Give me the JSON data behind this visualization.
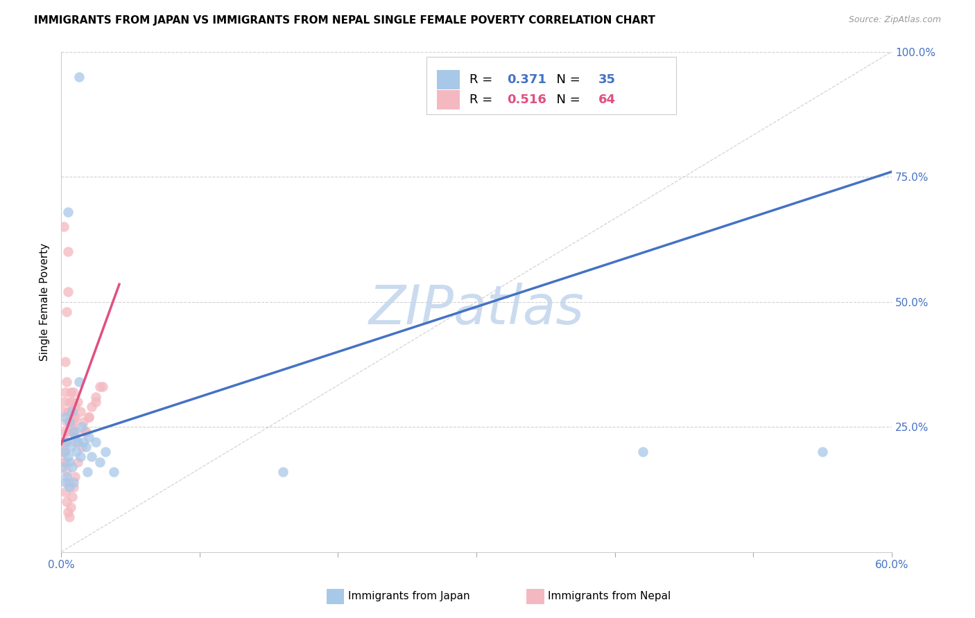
{
  "title": "IMMIGRANTS FROM JAPAN VS IMMIGRANTS FROM NEPAL SINGLE FEMALE POVERTY CORRELATION CHART",
  "source": "Source: ZipAtlas.com",
  "ylabel": "Single Female Poverty",
  "xlim": [
    0.0,
    0.6
  ],
  "ylim": [
    0.0,
    1.0
  ],
  "japan_color": "#a8c8e8",
  "nepal_color": "#f4b8c0",
  "japan_R": 0.371,
  "japan_N": 35,
  "nepal_R": 0.516,
  "nepal_N": 64,
  "background_color": "#ffffff",
  "grid_color": "#d0d0d0",
  "japan_line_color": "#4472c4",
  "nepal_line_color": "#e05080",
  "ref_line_color": "#c8c8c8",
  "watermark": "ZIPatlas",
  "watermark_color": "#c5d8ee",
  "japan_line_x": [
    0.0,
    0.6
  ],
  "japan_line_y": [
    0.22,
    0.76
  ],
  "nepal_line_x": [
    0.0,
    0.042
  ],
  "nepal_line_y": [
    0.215,
    0.535
  ],
  "japan_scatter_x": [
    0.005,
    0.013,
    0.003,
    0.006,
    0.008,
    0.004,
    0.007,
    0.009,
    0.002,
    0.005,
    0.01,
    0.012,
    0.015,
    0.018,
    0.02,
    0.006,
    0.008,
    0.011,
    0.014,
    0.016,
    0.019,
    0.022,
    0.025,
    0.028,
    0.032,
    0.038,
    0.16,
    0.42,
    0.55,
    0.003,
    0.004,
    0.006,
    0.009,
    0.013,
    0.001
  ],
  "japan_scatter_y": [
    0.68,
    0.95,
    0.27,
    0.26,
    0.28,
    0.22,
    0.21,
    0.24,
    0.2,
    0.19,
    0.23,
    0.22,
    0.25,
    0.21,
    0.23,
    0.18,
    0.17,
    0.2,
    0.19,
    0.22,
    0.16,
    0.19,
    0.22,
    0.18,
    0.2,
    0.16,
    0.16,
    0.2,
    0.2,
    0.14,
    0.15,
    0.13,
    0.14,
    0.34,
    0.17
  ],
  "nepal_scatter_x": [
    0.001,
    0.002,
    0.003,
    0.004,
    0.005,
    0.006,
    0.007,
    0.008,
    0.009,
    0.01,
    0.002,
    0.003,
    0.004,
    0.005,
    0.006,
    0.007,
    0.008,
    0.009,
    0.01,
    0.011,
    0.001,
    0.002,
    0.003,
    0.004,
    0.005,
    0.006,
    0.007,
    0.008,
    0.009,
    0.002,
    0.003,
    0.004,
    0.005,
    0.006,
    0.007,
    0.008,
    0.01,
    0.012,
    0.014,
    0.016,
    0.018,
    0.02,
    0.022,
    0.025,
    0.028,
    0.001,
    0.002,
    0.003,
    0.004,
    0.005,
    0.003,
    0.004,
    0.005,
    0.006,
    0.007,
    0.008,
    0.009,
    0.01,
    0.012,
    0.015,
    0.017,
    0.02,
    0.025,
    0.03
  ],
  "nepal_scatter_y": [
    0.28,
    0.3,
    0.32,
    0.34,
    0.6,
    0.26,
    0.28,
    0.25,
    0.27,
    0.29,
    0.22,
    0.24,
    0.26,
    0.28,
    0.3,
    0.32,
    0.28,
    0.26,
    0.24,
    0.22,
    0.2,
    0.18,
    0.2,
    0.22,
    0.24,
    0.26,
    0.28,
    0.3,
    0.32,
    0.65,
    0.38,
    0.48,
    0.52,
    0.28,
    0.26,
    0.24,
    0.27,
    0.3,
    0.28,
    0.26,
    0.24,
    0.27,
    0.29,
    0.31,
    0.33,
    0.22,
    0.2,
    0.18,
    0.16,
    0.14,
    0.12,
    0.1,
    0.08,
    0.07,
    0.09,
    0.11,
    0.13,
    0.15,
    0.18,
    0.21,
    0.24,
    0.27,
    0.3,
    0.33
  ]
}
